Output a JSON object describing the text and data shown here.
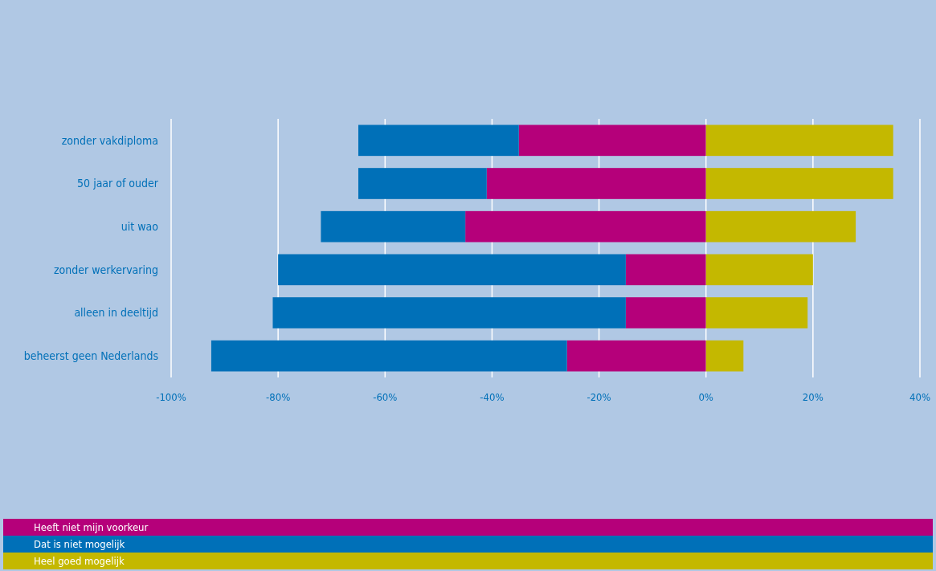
{
  "chart_data": {
    "type": "bar",
    "orientation": "horizontal",
    "stacked": true,
    "grid": "x",
    "legend": "bottom",
    "categories": [
      "zonder vakdiploma",
      "50 jaar of ouder",
      "uit wao",
      "zonder werkervaring",
      "alleen in deeltijd",
      "beheerst geen Nederlands"
    ],
    "series": [
      {
        "name": "Heeft niet mijn voorkeur",
        "color": "#b5007a",
        "values": [
          -35,
          -41,
          -45,
          -15,
          -15,
          -26
        ]
      },
      {
        "name": "Dat is niet mogelijk",
        "color": "#0070b8",
        "values": [
          -30,
          -24,
          -27,
          -65,
          -66,
          -66.5
        ]
      },
      {
        "name": "Heel goed mogelijk",
        "color": "#c4b800",
        "values": [
          35,
          35,
          28,
          20,
          19,
          7
        ]
      }
    ],
    "xlim": [
      -100,
      40
    ],
    "xticks": [
      {
        "value": -100,
        "label": "-100%"
      },
      {
        "value": -80,
        "label": "-80%"
      },
      {
        "value": -60,
        "label": "-60%"
      },
      {
        "value": -40,
        "label": "-40%"
      },
      {
        "value": -20,
        "label": "-20%"
      },
      {
        "value": 0,
        "label": "0%"
      },
      {
        "value": 20,
        "label": "20%"
      },
      {
        "value": 40,
        "label": "40%"
      }
    ]
  }
}
